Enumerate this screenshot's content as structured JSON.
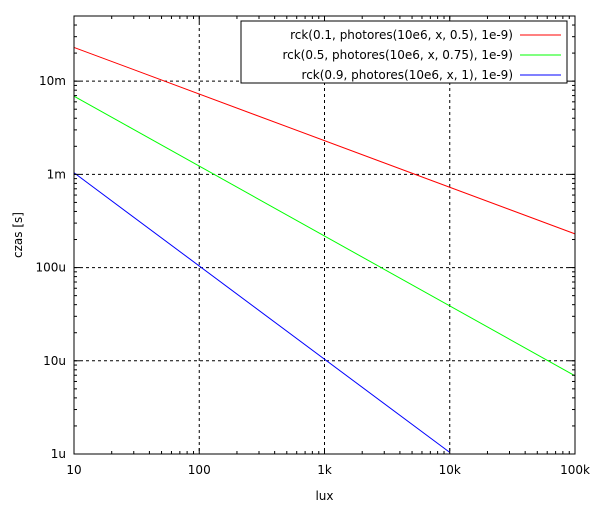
{
  "chart_data": {
    "type": "line",
    "xlabel": "lux",
    "ylabel": "czas [s]",
    "xscale": "log",
    "yscale": "log",
    "xlim": [
      10,
      100000
    ],
    "ylim": [
      1e-06,
      0.05
    ],
    "grid": true,
    "legend_position": "top-right",
    "x_ticks": [
      {
        "value": 10,
        "label": "10"
      },
      {
        "value": 100,
        "label": "100"
      },
      {
        "value": 1000,
        "label": "1k"
      },
      {
        "value": 10000,
        "label": "10k"
      },
      {
        "value": 100000,
        "label": "100k"
      }
    ],
    "y_ticks": [
      {
        "value": 1e-06,
        "label": "1u"
      },
      {
        "value": 1e-05,
        "label": "10u"
      },
      {
        "value": 0.0001,
        "label": "100u"
      },
      {
        "value": 0.001,
        "label": "1m"
      },
      {
        "value": 0.01,
        "label": "10m"
      }
    ],
    "series": [
      {
        "name": "rck(0.1, photores(10e6, x, 0.5), 1e-9)",
        "color": "#ff0000",
        "x": [
          10,
          100000
        ],
        "y": [
          0.023,
          0.00023
        ]
      },
      {
        "name": "rck(0.5, photores(10e6, x, 0.75), 1e-9)",
        "color": "#00ff00",
        "x": [
          10,
          100000
        ],
        "y": [
          0.0069,
          6.9e-06
        ]
      },
      {
        "name": "rck(0.9, photores(10e6, x, 1), 1e-9)",
        "color": "#0000ff",
        "x": [
          10,
          10000
        ],
        "y": [
          0.00104,
          1.04e-06
        ]
      }
    ]
  }
}
